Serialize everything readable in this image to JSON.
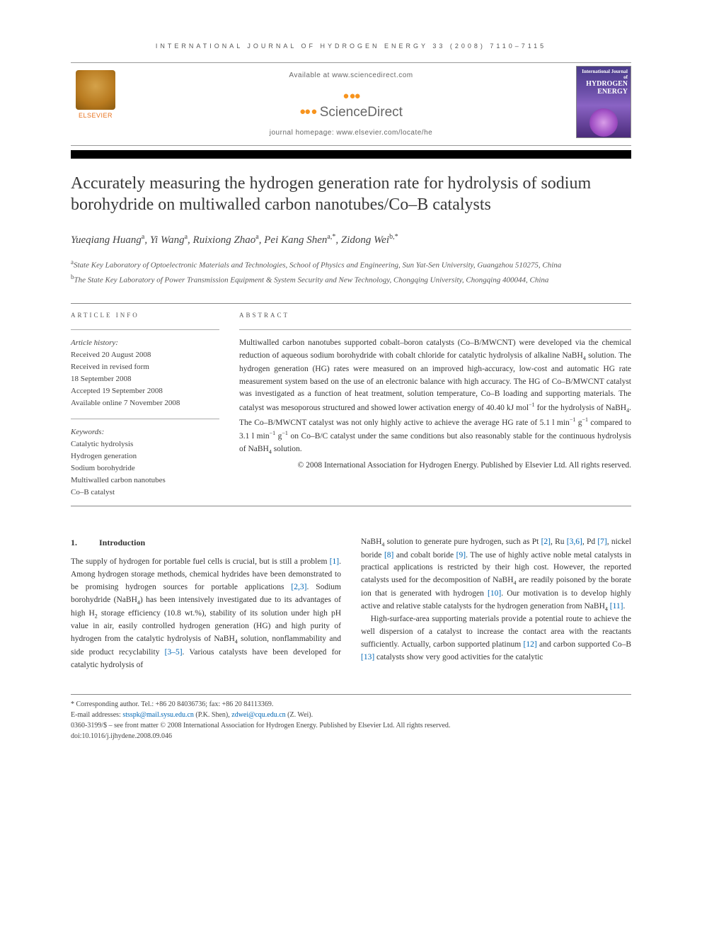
{
  "journal_header": "INTERNATIONAL JOURNAL OF HYDROGEN ENERGY 33 (2008) 7110–7115",
  "banner": {
    "elsevier": "ELSEVIER",
    "available": "Available at www.sciencedirect.com",
    "sd_brand": "ScienceDirect",
    "homepage": "journal homepage: www.elsevier.com/locate/he",
    "cover_line1": "International Journal of",
    "cover_line2": "HYDROGEN",
    "cover_line3": "ENERGY"
  },
  "title": "Accurately measuring the hydrogen generation rate for hydrolysis of sodium borohydride on multiwalled carbon nanotubes/Co–B catalysts",
  "authors_html": "Yueqiang Huang<sup>a</sup>, Yi Wang<sup>a</sup>, Ruixiong Zhao<sup>a</sup>, Pei Kang Shen<sup>a,*</sup>, Zidong Wei<sup>b,*</sup>",
  "affiliations": {
    "a": "State Key Laboratory of Optoelectronic Materials and Technologies, School of Physics and Engineering, Sun Yat-Sen University, Guangzhou 510275, China",
    "b": "The State Key Laboratory of Power Transmission Equipment & System Security and New Technology, Chongqing University, Chongqing 400044, China"
  },
  "article_info": {
    "head": "ARTICLE INFO",
    "history_label": "Article history:",
    "received": "Received 20 August 2008",
    "revised1": "Received in revised form",
    "revised2": "18 September 2008",
    "accepted": "Accepted 19 September 2008",
    "online": "Available online 7 November 2008",
    "keywords_label": "Keywords:",
    "keywords": [
      "Catalytic hydrolysis",
      "Hydrogen generation",
      "Sodium borohydride",
      "Multiwalled carbon nanotubes",
      "Co–B catalyst"
    ]
  },
  "abstract": {
    "head": "ABSTRACT",
    "text": "Multiwalled carbon nanotubes supported cobalt–boron catalysts (Co–B/MWCNT) were developed via the chemical reduction of aqueous sodium borohydride with cobalt chloride for catalytic hydrolysis of alkaline NaBH₄ solution. The hydrogen generation (HG) rates were measured on an improved high-accuracy, low-cost and automatic HG rate measurement system based on the use of an electronic balance with high accuracy. The HG of Co–B/MWCNT catalyst was investigated as a function of heat treatment, solution temperature, Co–B loading and supporting materials. The catalyst was mesoporous structured and showed lower activation energy of 40.40 kJ mol⁻¹ for the hydrolysis of NaBH₄. The Co–B/MWCNT catalyst was not only highly active to achieve the average HG rate of 5.1 l min⁻¹ g⁻¹ compared to 3.1 l min⁻¹ g⁻¹ on Co–B/C catalyst under the same conditions but also reasonably stable for the continuous hydrolysis of NaBH₄ solution.",
    "copyright": "© 2008 International Association for Hydrogen Energy. Published by Elsevier Ltd. All rights reserved."
  },
  "section1": {
    "num": "1.",
    "title": "Introduction"
  },
  "body": {
    "col1": "The supply of hydrogen for portable fuel cells is crucial, but is still a problem [1]. Among hydrogen storage methods, chemical hydrides have been demonstrated to be promising hydrogen sources for portable applications [2,3]. Sodium borohydride (NaBH₄) has been intensively investigated due to its advantages of high H₂ storage efficiency (10.8 wt.%), stability of its solution under high pH value in air, easily controlled hydrogen generation (HG) and high purity of hydrogen from the catalytic hydrolysis of NaBH₄ solution, nonflammability and side product recyclability [3–5]. Various catalysts have been developed for catalytic hydrolysis of",
    "col2a": "NaBH₄ solution to generate pure hydrogen, such as Pt [2], Ru [3,6], Pd [7], nickel boride [8] and cobalt boride [9]. The use of highly active noble metal catalysts in practical applications is restricted by their high cost. However, the reported catalysts used for the decomposition of NaBH₄ are readily poisoned by the borate ion that is generated with hydrogen [10]. Our motivation is to develop highly active and relative stable catalysts for the hydrogen generation from NaBH₄ [11].",
    "col2b": "High-surface-area supporting materials provide a potential route to achieve the well dispersion of a catalyst to increase the contact area with the reactants sufficiently. Actually, carbon supported platinum [12] and carbon supported Co–B [13] catalysts show very good activities for the catalytic"
  },
  "footnotes": {
    "corr": "* Corresponding author. Tel.: +86 20 84036736; fax: +86 20 84113369.",
    "email_label": "E-mail addresses: ",
    "email1": "stsspk@mail.sysu.edu.cn",
    "email1_who": " (P.K. Shen), ",
    "email2": "zdwei@cqu.edu.cn",
    "email2_who": " (Z. Wei).",
    "rights": "0360-3199/$ – see front matter © 2008 International Association for Hydrogen Energy. Published by Elsevier Ltd. All rights reserved.",
    "doi": "doi:10.1016/j.ijhydene.2008.09.046"
  },
  "cite_color": "#0066b3"
}
